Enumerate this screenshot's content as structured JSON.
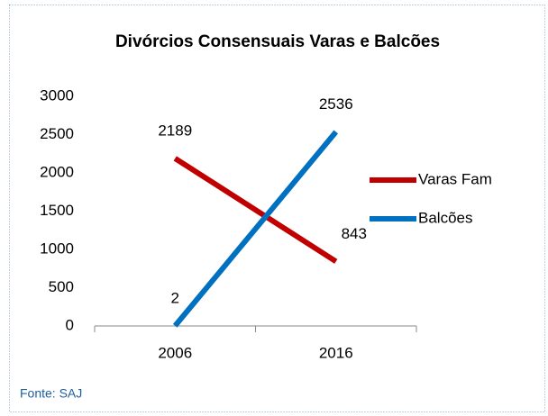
{
  "chart_data": {
    "type": "line",
    "title": "Divórcios Consensuais  Varas e Balcões",
    "categories": [
      "2006",
      "2016"
    ],
    "series": [
      {
        "name": "Varas Fam",
        "color": "#c00000",
        "values": [
          2189,
          843
        ]
      },
      {
        "name": "Balcões",
        "color": "#0070c0",
        "values": [
          2,
          2536
        ]
      }
    ],
    "ylim": [
      0,
      3000
    ],
    "yticks": [
      0,
      500,
      1000,
      1500,
      2000,
      2500,
      3000
    ],
    "grid": false,
    "legend": "right",
    "source": "Fonte: SAJ"
  }
}
